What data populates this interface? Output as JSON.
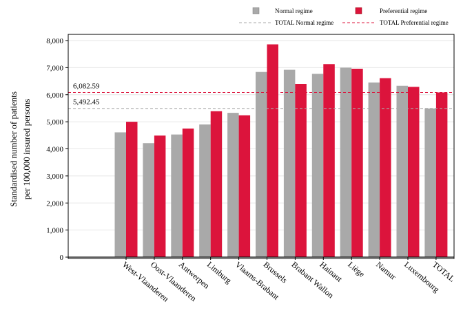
{
  "chart_data": {
    "type": "bar",
    "ylabel_line1": "Standardised number of patients",
    "ylabel_line2": "per 100,000 insured persons",
    "ylim": [
      0,
      8000
    ],
    "yticks": [
      0,
      1000,
      2000,
      3000,
      4000,
      5000,
      6000,
      7000,
      8000
    ],
    "ytick_labels": [
      "0",
      "1,000",
      "2,000",
      "3,000",
      "4,000",
      "5,000",
      "6,000",
      "7,000",
      "8,000"
    ],
    "grid": "horizontal",
    "legend_position": "top",
    "categories": [
      "West-Vlaanderen",
      "Oost-Vlaanderen",
      "Antwerpen",
      "Limburg",
      "Vlaams-Brabant",
      "Brussels",
      "Brabant Wallon",
      "Hainaut",
      "Liège",
      "Namur",
      "Luxembourg",
      "TOTAL"
    ],
    "series": [
      {
        "name": "Normal regime",
        "color": "#a9a9a9",
        "values": [
          4610,
          4210,
          4530,
          4900,
          5330,
          6840,
          6920,
          6770,
          7000,
          6450,
          6330,
          5492.45
        ]
      },
      {
        "name": "Preferential regime",
        "color": "#dc143c",
        "values": [
          5000,
          4490,
          4750,
          5390,
          5240,
          7860,
          6400,
          7130,
          6960,
          6610,
          6290,
          6082.59
        ]
      }
    ],
    "reference_lines": [
      {
        "name": "TOTAL Normal regime",
        "value": 5492.45,
        "label": "5,492.45",
        "color": "#a9a9a9"
      },
      {
        "name": "TOTAL Preferential regime",
        "value": 6082.59,
        "label": "6,082.59",
        "color": "#dc143c"
      }
    ]
  }
}
